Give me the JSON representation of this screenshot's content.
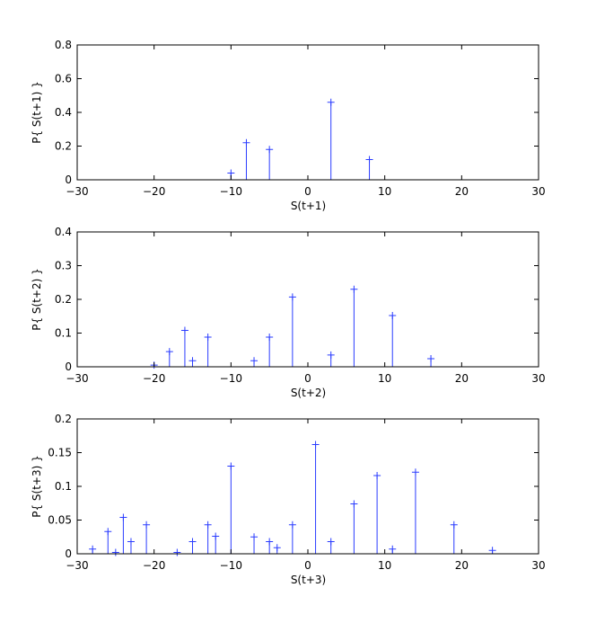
{
  "chart_data": [
    {
      "type": "stem",
      "xlabel": "S(t+1)",
      "ylabel": "P{ S(t+1) }",
      "xlim": [
        -30,
        30
      ],
      "ylim": [
        0,
        0.8
      ],
      "xticks": [
        -30,
        -20,
        -10,
        0,
        10,
        20,
        30
      ],
      "yticks": [
        0,
        0.2,
        0.4,
        0.6,
        0.8
      ],
      "xtick_labels": [
        "−30",
        "−20",
        "−10",
        "0",
        "10",
        "20",
        "30"
      ],
      "ytick_labels": [
        "0",
        "0.2",
        "0.4",
        "0.6",
        "0.8"
      ],
      "marker": "+",
      "color": "#2a3cff",
      "x": [
        -10,
        -8,
        -5,
        3,
        8
      ],
      "y": [
        0.04,
        0.22,
        0.18,
        0.46,
        0.12
      ]
    },
    {
      "type": "stem",
      "xlabel": "S(t+2)",
      "ylabel": "P{ S(t+2) }",
      "xlim": [
        -30,
        30
      ],
      "ylim": [
        0,
        0.4
      ],
      "xticks": [
        -30,
        -20,
        -10,
        0,
        10,
        20,
        30
      ],
      "yticks": [
        0,
        0.1,
        0.2,
        0.3,
        0.4
      ],
      "xtick_labels": [
        "−30",
        "−20",
        "−10",
        "0",
        "10",
        "20",
        "30"
      ],
      "ytick_labels": [
        "0",
        "0.1",
        "0.2",
        "0.3",
        "0.4"
      ],
      "marker": "+",
      "color": "#2a3cff",
      "x": [
        -20,
        -18,
        -16,
        -15,
        -13,
        -7,
        -5,
        -2,
        3,
        6,
        11,
        16
      ],
      "y": [
        0.005,
        0.045,
        0.108,
        0.018,
        0.088,
        0.018,
        0.088,
        0.207,
        0.035,
        0.23,
        0.152,
        0.024
      ]
    },
    {
      "type": "stem",
      "xlabel": "S(t+3)",
      "ylabel": "P{ S(t+3) }",
      "xlim": [
        -30,
        30
      ],
      "ylim": [
        0,
        0.2
      ],
      "xticks": [
        -30,
        -20,
        -10,
        0,
        10,
        20,
        30
      ],
      "yticks": [
        0,
        0.05,
        0.1,
        0.15,
        0.2
      ],
      "xtick_labels": [
        "−30",
        "−20",
        "−10",
        "0",
        "10",
        "20",
        "30"
      ],
      "ytick_labels": [
        "0",
        "0.05",
        "0.1",
        "0.15",
        "0.2"
      ],
      "marker": "+",
      "color": "#2a3cff",
      "x": [
        -28,
        -26,
        -25,
        -24,
        -23,
        -21,
        -17,
        -15,
        -13,
        -12,
        -10,
        -7,
        -5,
        -4,
        -2,
        1,
        3,
        6,
        9,
        11,
        14,
        19,
        24
      ],
      "y": [
        0.007,
        0.033,
        0.002,
        0.054,
        0.018,
        0.043,
        0.002,
        0.018,
        0.043,
        0.026,
        0.13,
        0.025,
        0.018,
        0.009,
        0.043,
        0.162,
        0.018,
        0.074,
        0.116,
        0.007,
        0.121,
        0.043,
        0.005
      ]
    }
  ]
}
